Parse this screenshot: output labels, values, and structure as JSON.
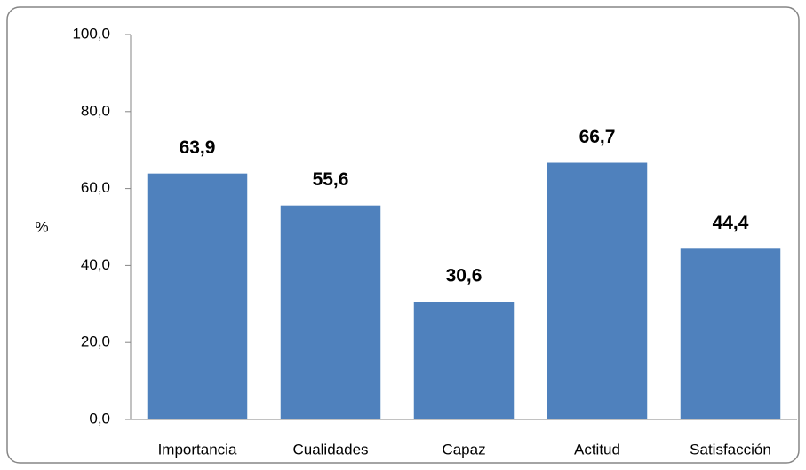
{
  "chart_data": {
    "type": "bar",
    "y_label": "%",
    "categories": [
      "Importancia",
      "Cualidades",
      "Capaz",
      "Actitud",
      "Satisfacción"
    ],
    "values": [
      63.9,
      55.6,
      30.6,
      66.7,
      44.4
    ],
    "value_labels": [
      "63,9",
      "55,6",
      "30,6",
      "66,7",
      "44,4"
    ],
    "color": "#4f81bd",
    "ylim": [
      0,
      100
    ],
    "yticks": [
      {
        "value": 0,
        "label": "0,0"
      },
      {
        "value": 20,
        "label": "20,0"
      },
      {
        "value": 40,
        "label": "40,0"
      },
      {
        "value": 60,
        "label": "60,0"
      },
      {
        "value": 80,
        "label": "80,0"
      },
      {
        "value": 100,
        "label": "100,0"
      }
    ],
    "grid": false
  }
}
